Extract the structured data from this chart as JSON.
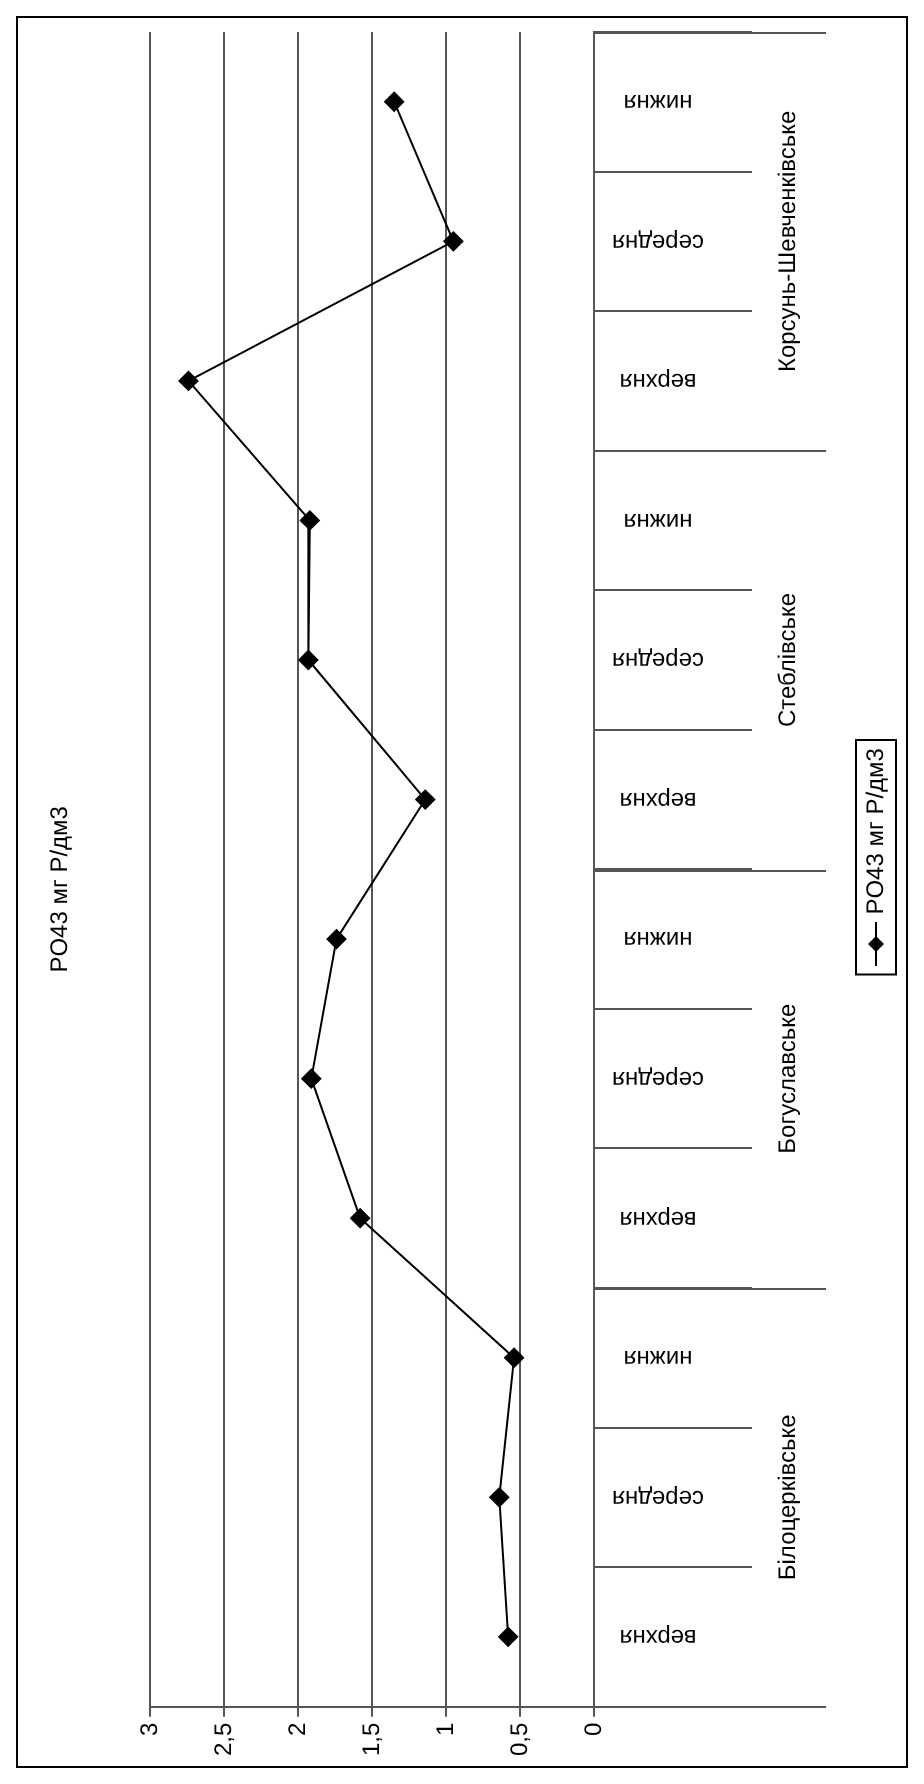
{
  "chart_data": {
    "type": "line",
    "title": "PO43 мг P/дм3",
    "orientation": "horizontal",
    "categories": [
      "нижня",
      "середня",
      "верхня",
      "нижня",
      "середня",
      "верхня",
      "нижня",
      "середня",
      "верхня",
      "нижня",
      "середня",
      "верхня"
    ],
    "series": [
      {
        "name": "PO43 мг P/дм3",
        "color": "#000000",
        "values": [
          1.35,
          0.95,
          2.74,
          1.92,
          1.93,
          1.14,
          1.74,
          1.91,
          1.58,
          0.54,
          0.64,
          0.58
        ]
      }
    ],
    "annotations": [
      "Корсунь-Шевченківське",
      "Стеблівське",
      "Богуславське",
      "Білоцерківське"
    ],
    "xlim": [
      3,
      0
    ],
    "xticks": [
      3,
      {
        "value": 2.5,
        "label": "2,5"
      },
      2,
      {
        "value": 1.5,
        "label": "1,5"
      },
      1,
      {
        "value": 0.5,
        "label": "0,5"
      },
      0
    ],
    "grid": "x",
    "legend": "right",
    "marker": "diamond",
    "line_style": "solid"
  }
}
